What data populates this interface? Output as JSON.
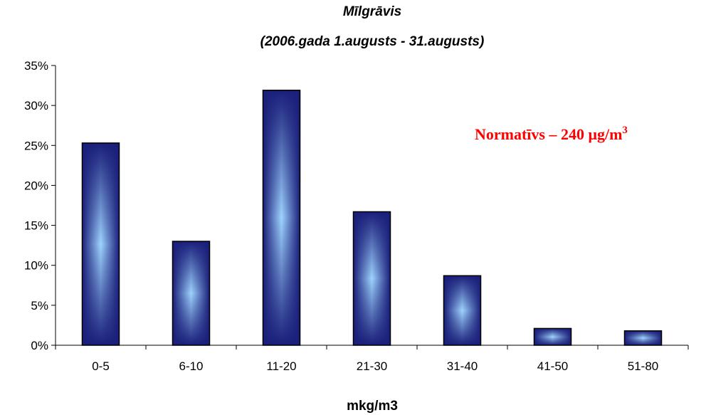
{
  "chart_data": {
    "type": "bar",
    "title": "Mīlgrāvis",
    "subtitle": "(2006.gada 1.augusts - 31.augusts)",
    "categories": [
      "0-5",
      "6-10",
      "11-20",
      "21-30",
      "31-40",
      "41-50",
      "51-80"
    ],
    "values": [
      25.3,
      13.0,
      31.9,
      16.7,
      8.7,
      2.1,
      1.8
    ],
    "xlabel": "mkg/m3",
    "ylabel": "",
    "ylim": [
      0,
      35
    ],
    "yticks": [
      "0%",
      "5%",
      "10%",
      "15%",
      "20%",
      "25%",
      "30%",
      "35%"
    ],
    "grid": false,
    "legend": "none",
    "annotation": {
      "text_main": "Normatīvs – 240 μg/m",
      "text_sup": "3",
      "color": "#ff0000"
    },
    "colors": {
      "bar_dark": "#1a1f7a",
      "bar_light": "#9fd4ff",
      "bar_edge": "#000000"
    }
  }
}
